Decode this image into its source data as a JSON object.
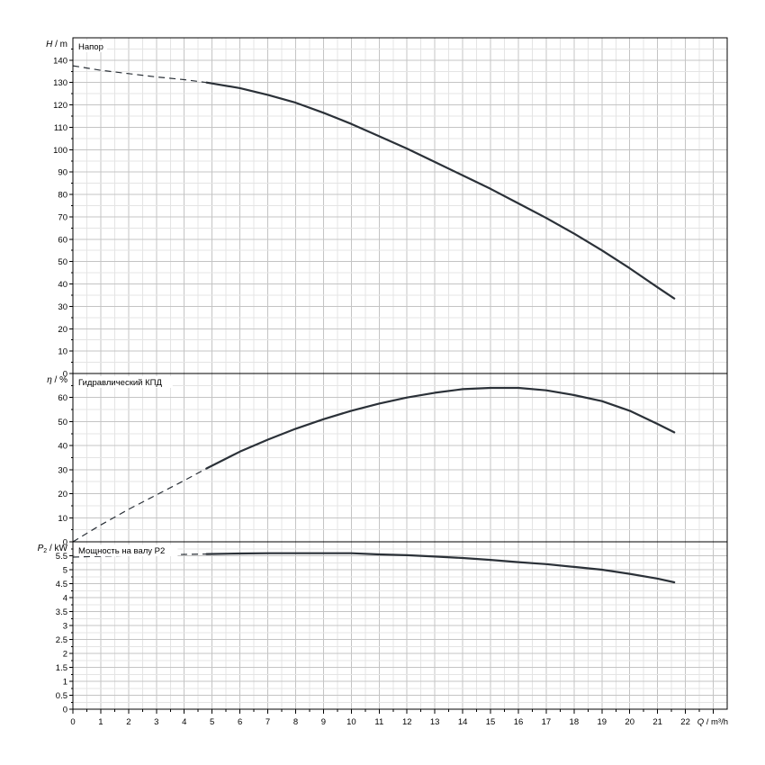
{
  "colors": {
    "background": "#ffffff",
    "grid_major": "#c4c4c4",
    "grid_minor": "#e4e4e4",
    "frame": "#000000",
    "curve": "#2b3138"
  },
  "x_axis": {
    "symbol": "Q",
    "unit": "m³/h",
    "range": [
      0,
      23.5
    ],
    "ticks": [
      0,
      1,
      2,
      3,
      4,
      5,
      6,
      7,
      8,
      9,
      10,
      11,
      12,
      13,
      14,
      15,
      16,
      17,
      18,
      19,
      20,
      21,
      22
    ],
    "tick_labels": [
      "0",
      "1",
      "2",
      "3",
      "4",
      "5",
      "6",
      "7",
      "8",
      "9",
      "10",
      "11",
      "12",
      "13",
      "14",
      "15",
      "16",
      "17",
      "18",
      "19",
      "20",
      "21",
      "22"
    ]
  },
  "chart_data": [
    {
      "type": "line",
      "panel": "head",
      "title": "Напор",
      "ylabel_symbol": "H",
      "ylabel_unit": "m",
      "ylim": [
        0,
        150
      ],
      "yticks": [
        0,
        10,
        20,
        30,
        40,
        50,
        60,
        70,
        80,
        90,
        100,
        110,
        120,
        130,
        140
      ],
      "ytick_labels": [
        "0",
        "10",
        "20",
        "30",
        "40",
        "50",
        "60",
        "70",
        "80",
        "90",
        "100",
        "110",
        "120",
        "130",
        "140"
      ],
      "grid": true,
      "dashed_segment": {
        "x": [
          0,
          1,
          2,
          3,
          4,
          4.8
        ],
        "y": [
          137.5,
          135.5,
          134,
          132.5,
          131.3,
          130
        ]
      },
      "solid_segment": {
        "x": [
          4.8,
          6,
          7,
          8,
          9,
          10,
          11,
          12,
          13,
          14,
          15,
          16,
          17,
          18,
          19,
          20,
          21,
          21.6
        ],
        "y": [
          130,
          127.5,
          124.5,
          121,
          116.5,
          111.5,
          106,
          100.5,
          94.5,
          88.5,
          82.5,
          76,
          69.5,
          62.5,
          55,
          47,
          38.5,
          33.5
        ]
      }
    },
    {
      "type": "line",
      "panel": "efficiency",
      "title": "Гидравлический КПД",
      "ylabel_symbol": "η",
      "ylabel_unit": "%",
      "ylim": [
        0,
        70
      ],
      "yticks": [
        0,
        10,
        20,
        30,
        40,
        50,
        60
      ],
      "ytick_labels": [
        "0",
        "10",
        "20",
        "30",
        "40",
        "50",
        "60"
      ],
      "grid": true,
      "dashed_segment": {
        "x": [
          0,
          1,
          2,
          3,
          4,
          4.8
        ],
        "y": [
          0,
          7,
          13.5,
          19.5,
          25.5,
          30.5
        ]
      },
      "solid_segment": {
        "x": [
          4.8,
          6,
          7,
          8,
          9,
          10,
          11,
          12,
          13,
          14,
          15,
          16,
          17,
          18,
          19,
          20,
          21,
          21.6
        ],
        "y": [
          30.5,
          37.5,
          42.5,
          47,
          51,
          54.5,
          57.5,
          60,
          62,
          63.5,
          64,
          64,
          63,
          61,
          58.5,
          54.5,
          49,
          45.5
        ]
      }
    },
    {
      "type": "line",
      "panel": "power",
      "title": "Мощность на валу P2",
      "ylabel_symbol": "P",
      "ylabel_subscript": "2",
      "ylabel_unit": "kW",
      "ylim": [
        0,
        6
      ],
      "yticks": [
        0,
        0.5,
        1,
        1.5,
        2,
        2.5,
        3,
        3.5,
        4,
        4.5,
        5,
        5.5
      ],
      "ytick_labels": [
        "0",
        "0.5",
        "1",
        "1.5",
        "2",
        "2.5",
        "3",
        "3.5",
        "4",
        "4.5",
        "5",
        "5.5"
      ],
      "grid": true,
      "dashed_segment": {
        "x": [
          0,
          1,
          2,
          3,
          4,
          4.8
        ],
        "y": [
          5.45,
          5.48,
          5.51,
          5.53,
          5.55,
          5.56
        ]
      },
      "solid_segment": {
        "x": [
          4.8,
          6,
          7,
          8,
          9,
          10,
          11,
          12,
          13,
          14,
          15,
          16,
          17,
          18,
          19,
          20,
          21,
          21.6
        ],
        "y": [
          5.56,
          5.58,
          5.59,
          5.59,
          5.59,
          5.59,
          5.55,
          5.52,
          5.47,
          5.42,
          5.35,
          5.27,
          5.2,
          5.1,
          5.0,
          4.85,
          4.68,
          4.55
        ]
      }
    }
  ]
}
